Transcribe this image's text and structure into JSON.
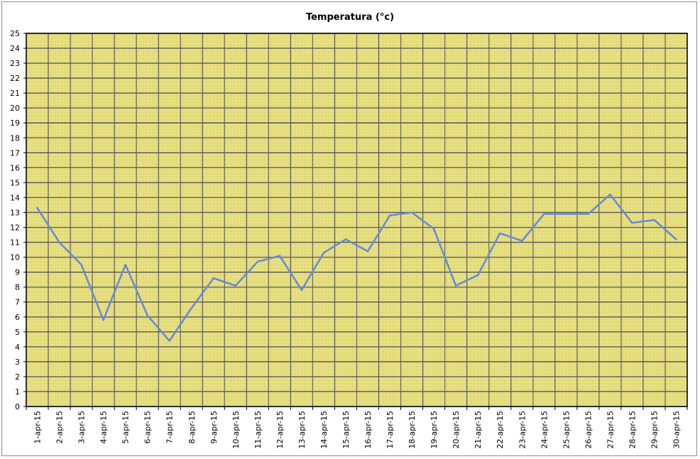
{
  "chart_data": {
    "type": "line",
    "title": "Temperatura (°c)",
    "xlabel": "",
    "ylabel": "",
    "ylim": [
      0,
      25
    ],
    "yticks": [
      0,
      1,
      2,
      3,
      4,
      5,
      6,
      7,
      8,
      9,
      10,
      11,
      12,
      13,
      14,
      15,
      16,
      17,
      18,
      19,
      20,
      21,
      22,
      23,
      24,
      25
    ],
    "grid": true,
    "legend": "none",
    "categories": [
      "1-apr-15",
      "2-apr-15",
      "3-apr-15",
      "4-apr-15",
      "5-apr-15",
      "6-apr-15",
      "7-apr-15",
      "8-apr-15",
      "9-apr-15",
      "10-apr-15",
      "11-apr-15",
      "12-apr-15",
      "13-apr-15",
      "14-apr-15",
      "15-apr-15",
      "16-apr-15",
      "17-apr-15",
      "18-apr-15",
      "19-apr-15",
      "20-apr-15",
      "21-apr-15",
      "22-apr-15",
      "23-apr-15",
      "24-apr-15",
      "25-apr-15",
      "26-apr-15",
      "27-apr-15",
      "28-apr-15",
      "29-apr-15",
      "30-apr-15"
    ],
    "series": [
      {
        "name": "",
        "values": [
          13.3,
          11.0,
          9.5,
          5.8,
          9.5,
          6.1,
          4.4,
          6.6,
          8.6,
          8.1,
          9.7,
          10.1,
          7.8,
          10.3,
          11.2,
          10.4,
          12.8,
          13.0,
          11.9,
          8.1,
          8.8,
          11.6,
          11.1,
          12.9,
          12.9,
          12.9,
          14.2,
          12.3,
          12.5,
          11.2
        ]
      }
    ],
    "colors": {
      "plot_background": "#f2ea7e",
      "gridline": "#5c5c5c",
      "line": "#6b8bd4",
      "axis": "#000000"
    }
  }
}
